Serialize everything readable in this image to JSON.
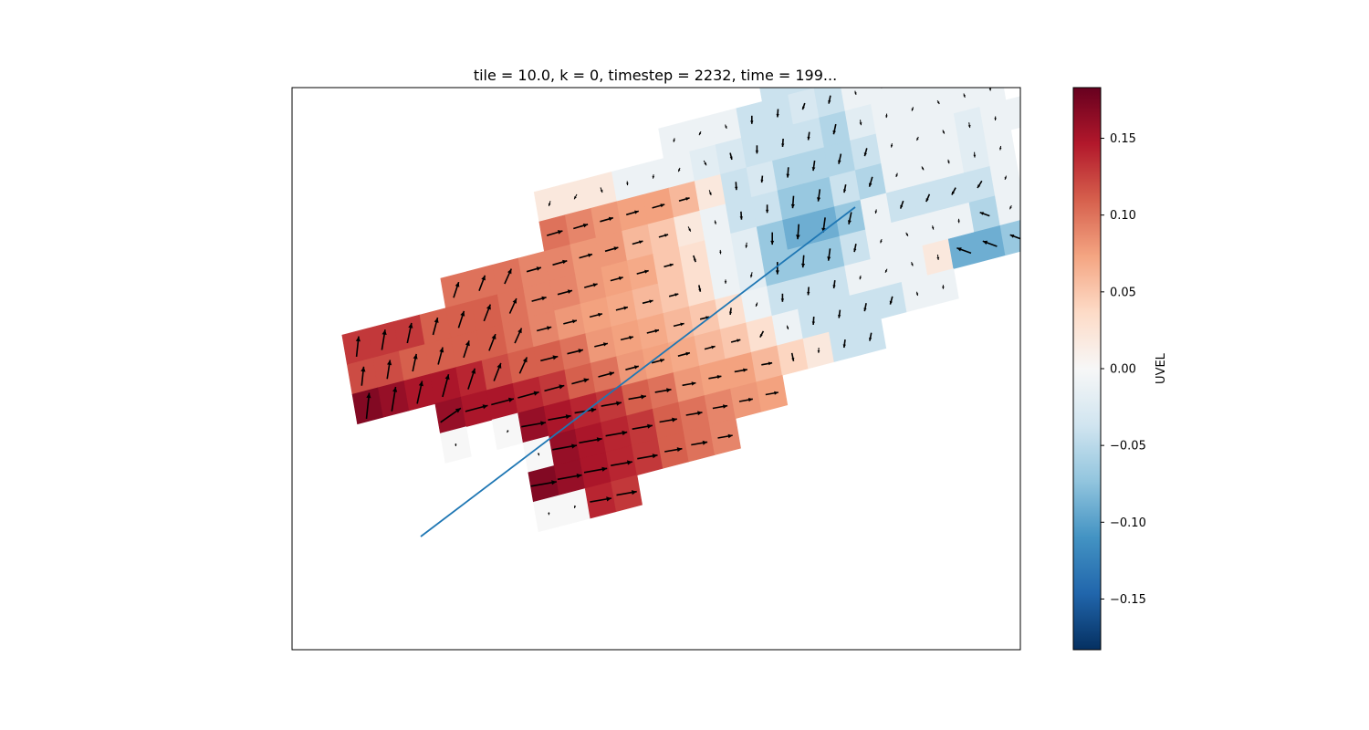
{
  "chart_data": {
    "type": "heatmap",
    "title": "tile = 10.0, k = 0, timestep = 2232, time = 199...",
    "colorbar": {
      "label": "UVEL",
      "colormap": "RdBu_r",
      "vmin": -0.183,
      "vmax": 0.183,
      "ticks": [
        -0.15,
        -0.1,
        -0.05,
        0.0,
        0.05,
        0.1,
        0.15
      ],
      "tick_labels": [
        "−0.15",
        "−0.10",
        "−0.05",
        "0.00",
        "0.05",
        "0.10",
        "0.15"
      ]
    },
    "axes_visible": false,
    "grid": false,
    "overlay": {
      "type": "quiver",
      "description_color": "#000000"
    },
    "line_overlay": {
      "color": "#1f77b4"
    },
    "grid_shape": {
      "rows": 16,
      "cols": 30
    },
    "field_rows": [
      "..........................z...",
      "......................HGyyG...",
      ".....................GGGGGG...",
      "...................DDCCGGGGG..",
      "...............GGGDDEDGGGGGG..",
      "..........HHHGGGFEDDDCFGGGGG..",
      "..........RQPOOMHDECCCDGGGFGG.",
      "......RRRQQPPMKHGDDBBDCGGGFG..",
      "..VVVTTTRQQPONKIGFBAABGDDDDG..",
      "..UUTTTTRQPONMKIGFBBBDGGGGCGG.",
      "..ZYXXWUTTRPONMKIGDDDGGGHAAB..",
      ".....YXXWVTRPONMKIGDDDDGG.....",
      ".....z.zYXWVTRPOOMJHDD........",
      "........zYXWVTRQPO............",
      "........ZYXWVTRQ..............",
      "........zzWV.................."
    ],
    "field_legend": {
      "A": -0.09,
      "B": -0.07,
      "C": -0.055,
      "D": -0.04,
      "E": -0.03,
      "F": -0.02,
      "G": -0.01,
      "H": 0.02,
      "I": 0.03,
      "J": 0.04,
      "K": 0.05,
      "M": 0.06,
      "N": 0.07,
      "O": 0.075,
      "P": 0.08,
      "Q": 0.09,
      "R": 0.1,
      "T": 0.11,
      "U": 0.12,
      "V": 0.13,
      "W": 0.14,
      "X": 0.15,
      "Y": 0.16,
      "Z": 0.17,
      "z": 0.0
    },
    "field_mask": ".",
    "vectors_u": "proportional to UVEL",
    "vectors_v": "from circulation pattern"
  }
}
